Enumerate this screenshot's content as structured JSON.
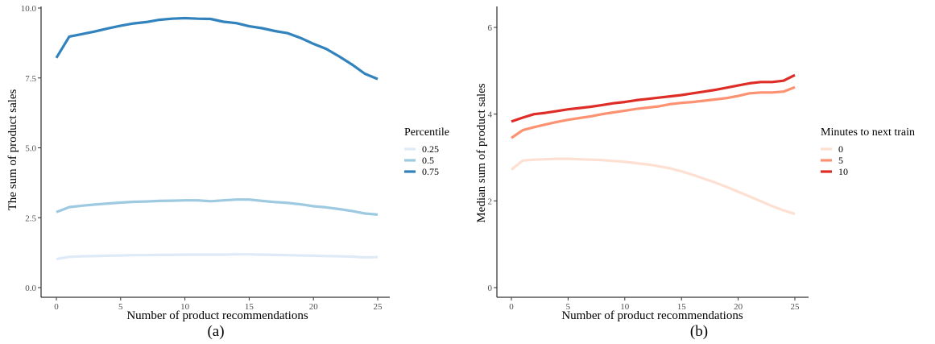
{
  "chart_data": [
    {
      "type": "line",
      "caption": "(a)",
      "xlabel": "Number of product recommendations",
      "ylabel": "The sum of product sales",
      "xlim": [
        0,
        25
      ],
      "ylim": [
        0,
        10
      ],
      "x_ticks": [
        0,
        5,
        10,
        15,
        20,
        25
      ],
      "y_ticks": [
        0,
        2.5,
        5,
        7.5,
        10
      ],
      "y_tick_labels": [
        "0.0",
        "2.5",
        "5.0",
        "7.5",
        "10.0"
      ],
      "grid": false,
      "legend": {
        "title": "Percentile",
        "placement": "right"
      },
      "x": [
        0,
        1,
        2,
        3,
        4,
        5,
        6,
        7,
        8,
        9,
        10,
        11,
        12,
        13,
        14,
        15,
        16,
        17,
        18,
        19,
        20,
        21,
        22,
        23,
        24,
        25
      ],
      "series": [
        {
          "name": "0.25",
          "color": "#deebf7",
          "values": [
            1.02,
            1.1,
            1.12,
            1.13,
            1.14,
            1.15,
            1.16,
            1.16,
            1.17,
            1.17,
            1.18,
            1.18,
            1.18,
            1.18,
            1.19,
            1.19,
            1.18,
            1.17,
            1.16,
            1.15,
            1.14,
            1.13,
            1.12,
            1.11,
            1.08,
            1.09
          ]
        },
        {
          "name": "0.5",
          "color": "#9ecae1",
          "values": [
            2.7,
            2.88,
            2.93,
            2.97,
            3.01,
            3.04,
            3.07,
            3.08,
            3.1,
            3.11,
            3.12,
            3.12,
            3.09,
            3.12,
            3.15,
            3.15,
            3.1,
            3.06,
            3.03,
            2.98,
            2.91,
            2.87,
            2.81,
            2.74,
            2.65,
            2.61
          ]
        },
        {
          "name": "0.75",
          "color": "#3182bd",
          "values": [
            8.22,
            8.98,
            9.07,
            9.16,
            9.27,
            9.37,
            9.45,
            9.5,
            9.58,
            9.62,
            9.64,
            9.62,
            9.61,
            9.51,
            9.46,
            9.35,
            9.28,
            9.18,
            9.1,
            8.93,
            8.72,
            8.54,
            8.27,
            7.98,
            7.65,
            7.46
          ]
        }
      ]
    },
    {
      "type": "line",
      "caption": "(b)",
      "xlabel": "Number of product recommendations",
      "ylabel": "Median sum of product sales",
      "xlim": [
        0,
        25
      ],
      "ylim": [
        0,
        6
      ],
      "x_ticks": [
        0,
        5,
        10,
        15,
        20,
        25
      ],
      "y_ticks": [
        0,
        2,
        4,
        6
      ],
      "y_tick_labels": [
        "0",
        "2",
        "4",
        "6"
      ],
      "grid": false,
      "legend": {
        "title": "Minutes to next train",
        "placement": "right"
      },
      "x": [
        0,
        1,
        2,
        3,
        4,
        5,
        6,
        7,
        8,
        9,
        10,
        11,
        12,
        13,
        14,
        15,
        16,
        17,
        18,
        19,
        20,
        21,
        22,
        23,
        24,
        25
      ],
      "series": [
        {
          "name": "0",
          "color": "#fee0d2",
          "values": [
            2.72,
            2.93,
            2.95,
            2.96,
            2.97,
            2.97,
            2.96,
            2.95,
            2.94,
            2.92,
            2.9,
            2.87,
            2.84,
            2.8,
            2.75,
            2.68,
            2.6,
            2.51,
            2.42,
            2.32,
            2.21,
            2.1,
            1.99,
            1.88,
            1.78,
            1.7
          ]
        },
        {
          "name": "5",
          "color": "#fc9272",
          "values": [
            3.45,
            3.63,
            3.7,
            3.76,
            3.82,
            3.87,
            3.91,
            3.95,
            4.0,
            4.04,
            4.08,
            4.12,
            4.15,
            4.18,
            4.23,
            4.26,
            4.28,
            4.31,
            4.34,
            4.37,
            4.42,
            4.48,
            4.5,
            4.5,
            4.52,
            4.62
          ]
        },
        {
          "name": "10",
          "color": "#de2d26",
          "values": [
            3.83,
            3.92,
            4.0,
            4.03,
            4.07,
            4.11,
            4.14,
            4.17,
            4.21,
            4.25,
            4.28,
            4.32,
            4.35,
            4.38,
            4.41,
            4.44,
            4.48,
            4.52,
            4.56,
            4.61,
            4.66,
            4.71,
            4.74,
            4.74,
            4.77,
            4.9
          ]
        }
      ]
    }
  ]
}
